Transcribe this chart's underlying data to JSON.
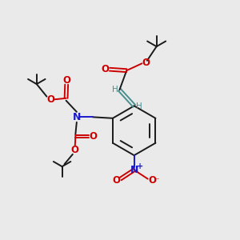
{
  "bg_color": "#eaeaea",
  "line_color": "#1a1a1a",
  "red_color": "#cc0000",
  "blue_color": "#1a1acc",
  "teal_color": "#4a8f8f",
  "bond_lw": 1.4,
  "figsize": [
    3.0,
    3.0
  ],
  "dpi": 100,
  "xlim": [
    0,
    10
  ],
  "ylim": [
    0,
    10
  ]
}
